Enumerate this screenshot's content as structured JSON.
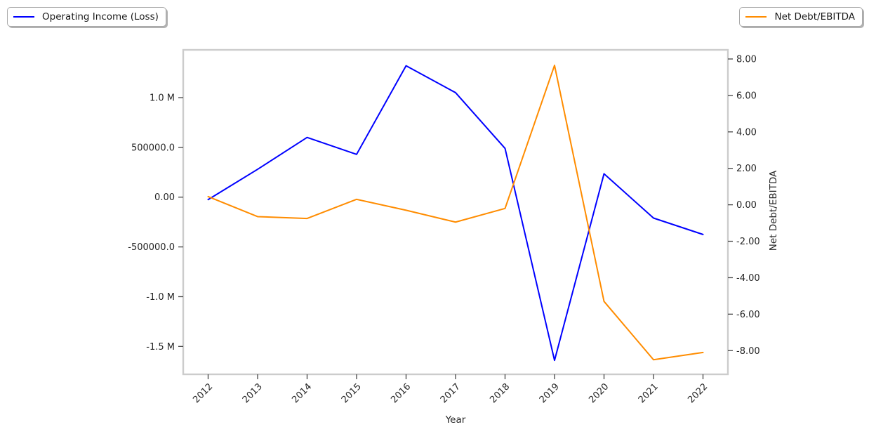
{
  "legend_left": {
    "label": "Operating Income (Loss)",
    "color": "#0000ff"
  },
  "legend_right": {
    "label": "Net Debt/EBITDA",
    "color": "#ff8c00"
  },
  "chart_data": {
    "type": "line",
    "title": "",
    "xlabel": "Year",
    "ylabel_right": "Net Debt/EBITDA",
    "grid": false,
    "legend_position": "outside top-left (Operating Income) and outside top-right (Net Debt/EBITDA)",
    "x": [
      2012,
      2013,
      2014,
      2015,
      2016,
      2017,
      2018,
      2019,
      2020,
      2021,
      2022
    ],
    "x_tick_labels": [
      "2012",
      "2013",
      "2014",
      "2015",
      "2016",
      "2017",
      "2018",
      "2019",
      "2020",
      "2021",
      "2022"
    ],
    "series": [
      {
        "name": "Operating Income (Loss)",
        "axis": "left",
        "color": "#0000ff",
        "values": [
          -25000,
          280000,
          600000,
          430000,
          1320000,
          1050000,
          490000,
          -1640000,
          235000,
          -210000,
          -375000
        ]
      },
      {
        "name": "Net Debt/EBITDA",
        "axis": "right",
        "color": "#ff8c00",
        "values": [
          0.45,
          -0.65,
          -0.75,
          0.3,
          -0.3,
          -0.95,
          -0.2,
          7.65,
          -5.3,
          -8.5,
          -8.1
        ]
      }
    ],
    "left_axis": {
      "range": [
        -1780000,
        1480000
      ],
      "tick_values": [
        1000000,
        500000,
        0,
        -500000,
        -1000000,
        -1500000
      ],
      "tick_labels": [
        "1.0 M",
        "500000.0",
        "0.00",
        "-500000.0",
        "-1.0 M",
        "-1.5 M"
      ]
    },
    "right_axis": {
      "range": [
        -9.3,
        8.5
      ],
      "tick_values": [
        8,
        6,
        4,
        2,
        0,
        -2,
        -4,
        -6,
        -8
      ],
      "tick_labels": [
        "8.00",
        "6.00",
        "4.00",
        "2.00",
        "0.00",
        "-2.00",
        "-4.00",
        "-6.00",
        "-8.00"
      ]
    }
  }
}
